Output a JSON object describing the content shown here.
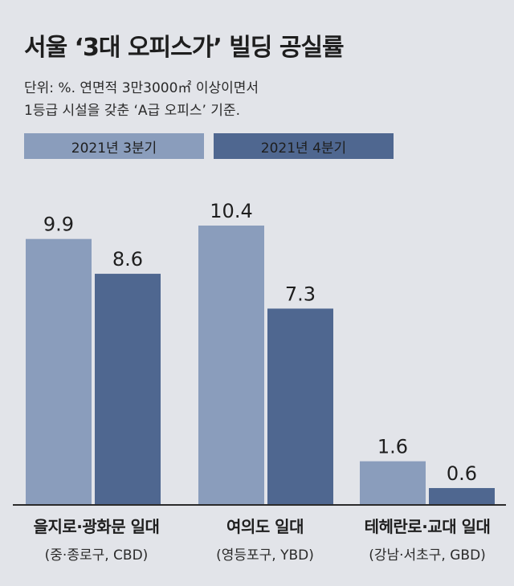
{
  "header": {
    "title": "서울 ‘3대 오피스가’ 빌딩 공실률",
    "subtitle_line1": "단위: %. 연면적 3만3000㎡ 이상이면서",
    "subtitle_line2": "1등급 시설을 갖춘 ‘A급 오피스’ 기준."
  },
  "chart_data": {
    "type": "bar",
    "title": "서울 ‘3대 오피스가’ 빌딩 공실률",
    "unit": "%",
    "categories": [
      "을지로·광화문 일대",
      "여의도 일대",
      "테헤란로·교대 일대"
    ],
    "category_sublabels": [
      "(중·종로구, CBD)",
      "(영등포구, YBD)",
      "(강남·서초구, GBD)"
    ],
    "series": [
      {
        "name": "2021년 3분기",
        "values": [
          9.9,
          10.4,
          1.6
        ],
        "labels": [
          "9.9",
          "10.4",
          "1.6"
        ],
        "color": "#8a9dbc"
      },
      {
        "name": "2021년 4분기",
        "values": [
          8.6,
          7.3,
          0.6
        ],
        "labels": [
          "8.6",
          "7.3",
          "0.6"
        ],
        "color": "#4f6790"
      }
    ],
    "ylim": [
      0,
      10.4
    ],
    "grid": false,
    "legend": "top-left",
    "data_labels": true
  },
  "colors": {
    "background": "#e2e4e9",
    "baseline": "#2b2b2b"
  }
}
